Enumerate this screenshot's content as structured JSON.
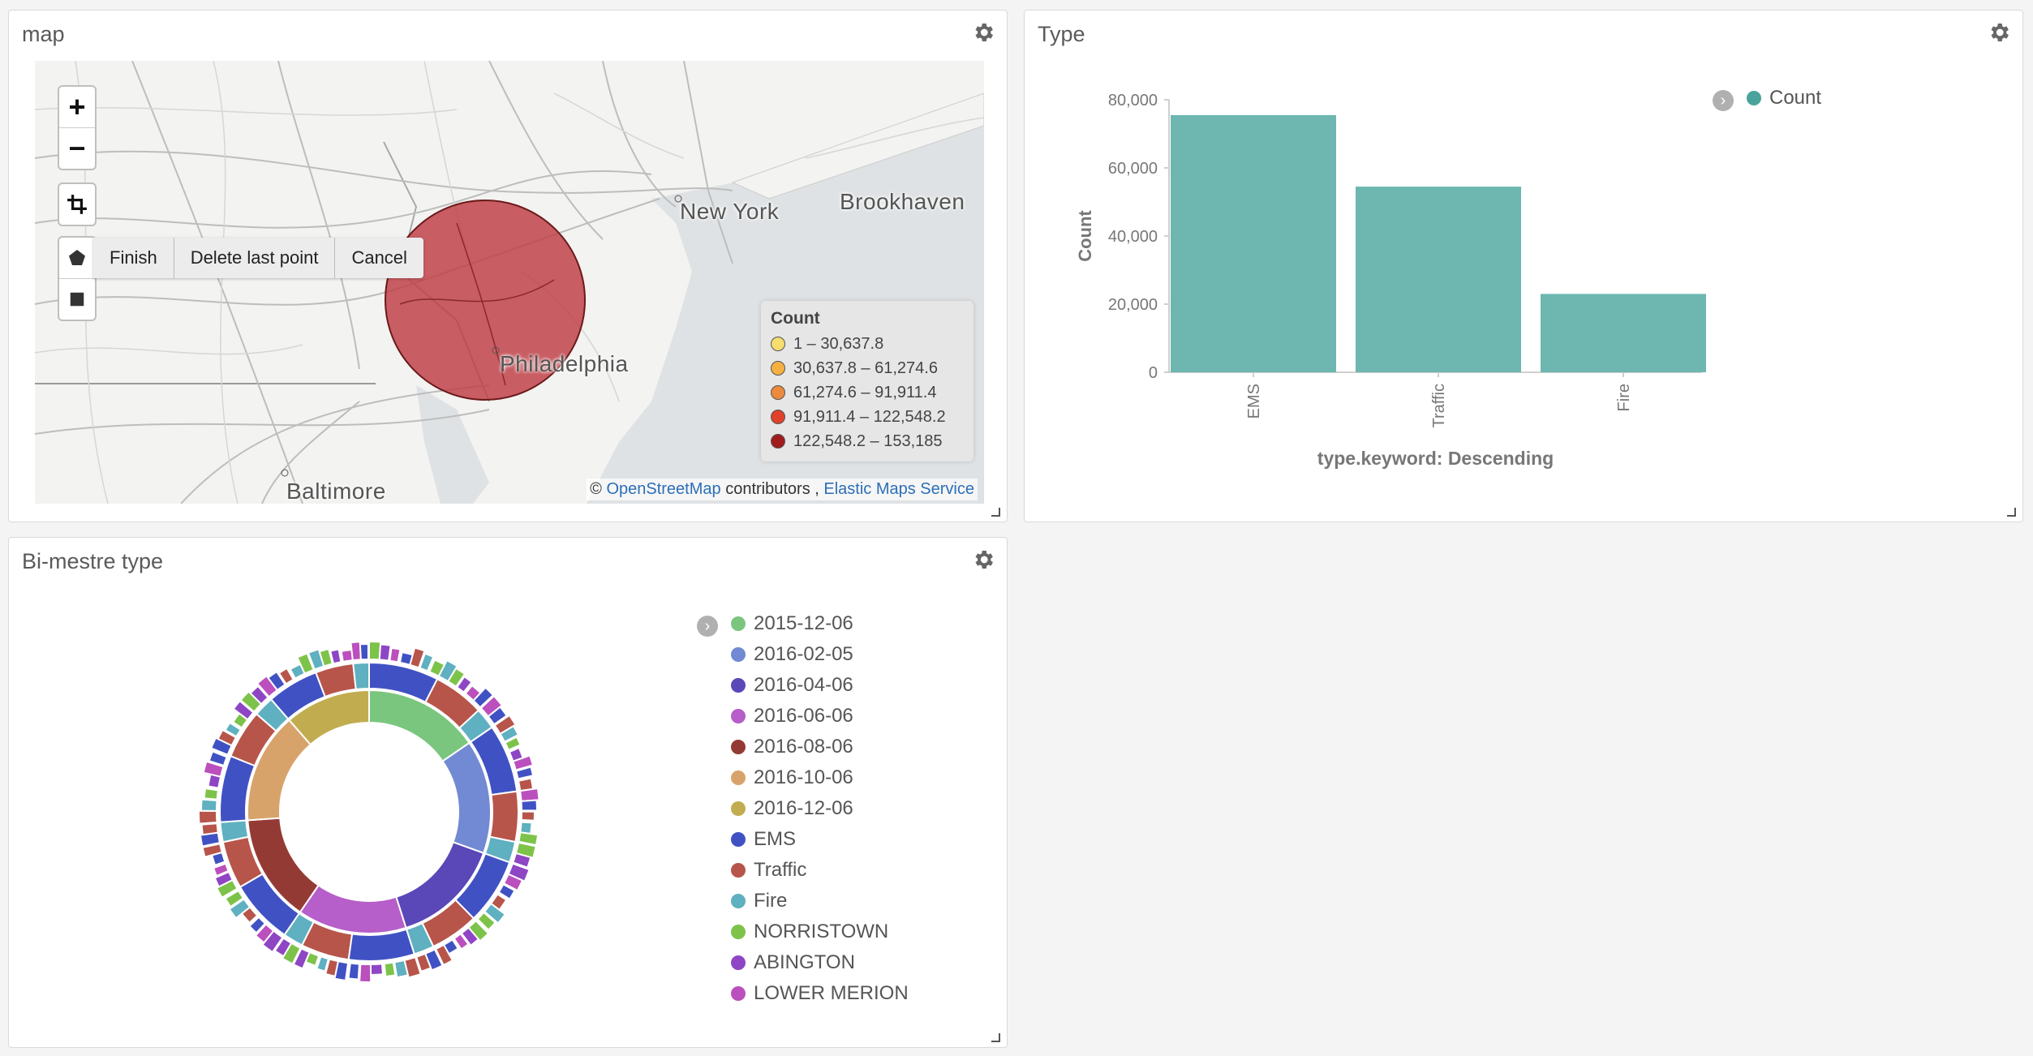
{
  "map_panel": {
    "title": "map",
    "controls": {
      "zoom_in": "+",
      "zoom_out": "−"
    },
    "draw_actions": {
      "finish": "Finish",
      "delete_last": "Delete last point",
      "cancel": "Cancel"
    },
    "cities": [
      {
        "name": "New York"
      },
      {
        "name": "Brookhaven"
      },
      {
        "name": "Philadelphia"
      },
      {
        "name": "Baltimore"
      }
    ],
    "legend": {
      "title": "Count",
      "ranges": [
        {
          "label": "1 – 30,637.8",
          "color": "#f7dc6f"
        },
        {
          "label": "30,637.8 – 61,274.6",
          "color": "#f5b041"
        },
        {
          "label": "61,274.6 – 91,911.4",
          "color": "#eb8a3c"
        },
        {
          "label": "91,911.4 – 122,548.2",
          "color": "#e0412a"
        },
        {
          "label": "122,548.2 – 153,185",
          "color": "#a11c1c"
        }
      ]
    },
    "attribution": {
      "prefix": "© ",
      "osm": "OpenStreetMap",
      "middle": " contributors , ",
      "ems": "Elastic Maps Service"
    }
  },
  "type_panel": {
    "title": "Type",
    "chart_data": {
      "type": "bar",
      "categories": [
        "EMS",
        "Traffic",
        "Fire"
      ],
      "series": [
        {
          "name": "Count",
          "values": [
            75500,
            54500,
            23000
          ]
        }
      ],
      "xlabel": "type.keyword: Descending",
      "ylabel": "Count",
      "ylim": [
        0,
        80000
      ],
      "yticks": [
        0,
        20000,
        40000,
        60000,
        80000
      ],
      "ytick_labels": [
        "0",
        "20,000",
        "40,000",
        "60,000",
        "80,000"
      ],
      "bar_color": "#6db7b0",
      "legend_position": "top-right"
    }
  },
  "bimestre_panel": {
    "title": "Bi-mestre type",
    "legend": [
      {
        "label": "2015-12-06",
        "color": "#7bc67e"
      },
      {
        "label": "2016-02-05",
        "color": "#7289d4"
      },
      {
        "label": "2016-04-06",
        "color": "#5a47b8"
      },
      {
        "label": "2016-06-06",
        "color": "#b65ec9"
      },
      {
        "label": "2016-08-06",
        "color": "#943a34"
      },
      {
        "label": "2016-10-06",
        "color": "#d8a36a"
      },
      {
        "label": "2016-12-06",
        "color": "#c1ad50"
      },
      {
        "label": "EMS",
        "color": "#4052c3"
      },
      {
        "label": "Traffic",
        "color": "#b7554b"
      },
      {
        "label": "Fire",
        "color": "#5fb0c0"
      },
      {
        "label": "NORRISTOWN",
        "color": "#7dc34a"
      },
      {
        "label": "ABINGTON",
        "color": "#8e46c4"
      },
      {
        "label": "LOWER MERION",
        "color": "#bb4fbd"
      }
    ],
    "chart_data": {
      "type": "pie",
      "subtype": "multi-level donut",
      "inner": [
        {
          "label": "2015-12-06",
          "value": 0.154
        },
        {
          "label": "2016-02-05",
          "value": 0.151
        },
        {
          "label": "2016-04-06",
          "value": 0.146
        },
        {
          "label": "2016-06-06",
          "value": 0.145
        },
        {
          "label": "2016-08-06",
          "value": 0.143
        },
        {
          "label": "2016-10-06",
          "value": 0.147
        },
        {
          "label": "2016-12-06",
          "value": 0.114
        }
      ],
      "middle_pattern": [
        {
          "label": "EMS",
          "value": 0.49
        },
        {
          "label": "Traffic",
          "value": 0.36
        },
        {
          "label": "Fire",
          "value": 0.15
        }
      ],
      "outer_colors": [
        "#7dc34a",
        "#8e46c4",
        "#bb4fbd",
        "#4052c3",
        "#b7554b",
        "#5fb0c0"
      ]
    }
  }
}
